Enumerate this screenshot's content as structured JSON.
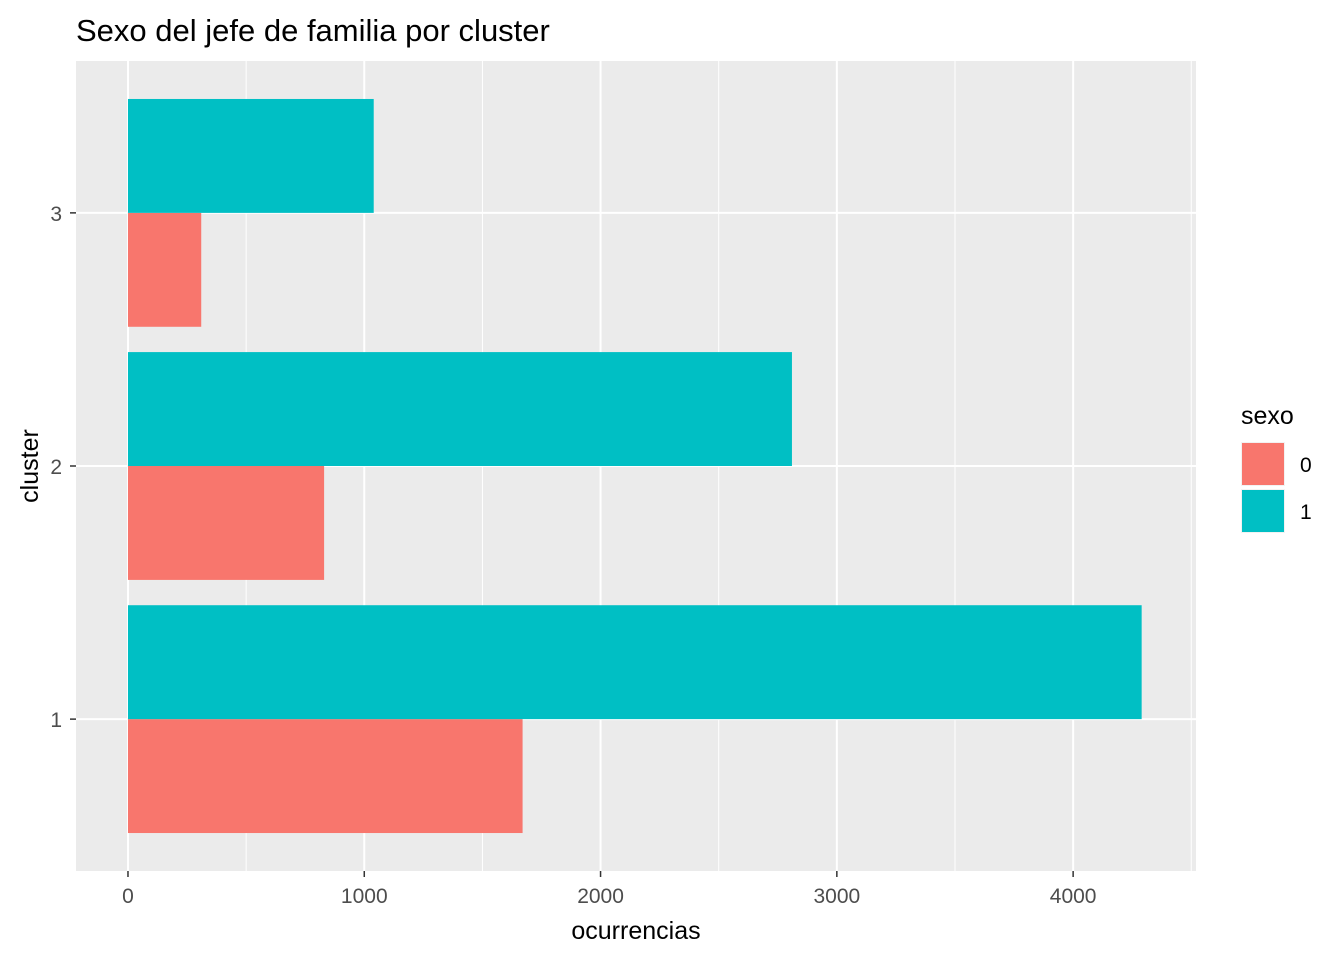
{
  "chart_data": {
    "type": "bar",
    "orientation": "horizontal",
    "title": "Sexo del jefe de familia por cluster",
    "xlabel": "ocurrencias",
    "ylabel": "cluster",
    "categories": [
      "1",
      "2",
      "3"
    ],
    "xlim": [
      -220,
      4520
    ],
    "x_ticks": [
      0,
      1000,
      2000,
      3000,
      4000
    ],
    "x_tick_labels": [
      "0",
      "1000",
      "2000",
      "3000",
      "4000"
    ],
    "grid": true,
    "legend": {
      "title": "sexo",
      "placement": "right",
      "entries": [
        {
          "label": "0",
          "color": "#F8766D"
        },
        {
          "label": "1",
          "color": "#00BFC4"
        }
      ]
    },
    "series": [
      {
        "name": "0",
        "color": "#F8766D",
        "values": [
          1670,
          830,
          310
        ]
      },
      {
        "name": "1",
        "color": "#00BFC4",
        "values": [
          4290,
          2810,
          1040
        ]
      }
    ],
    "panel_background": "#EBEBEB",
    "grid_color": "#FFFFFF"
  }
}
